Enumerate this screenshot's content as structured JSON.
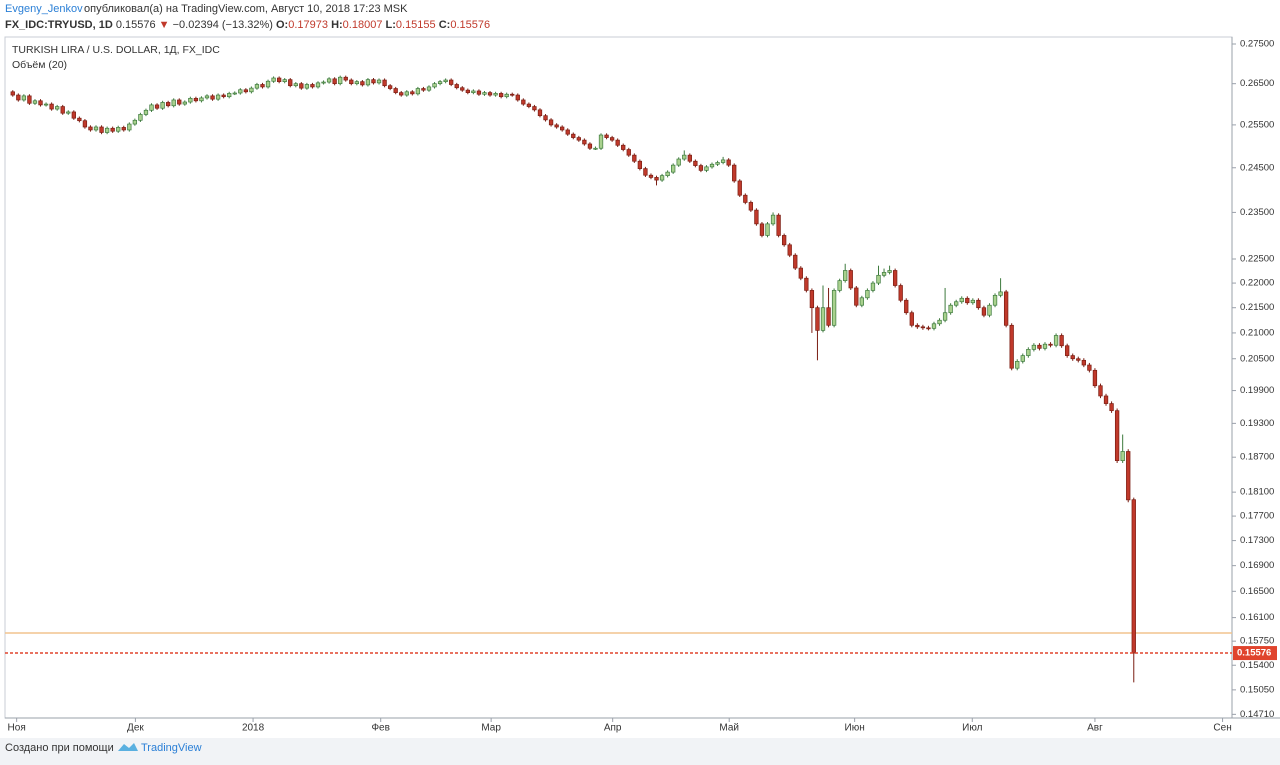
{
  "header": {
    "author": "Evgeny_Jenkov",
    "published": "опубликовал(а) на TradingView.com, Август 10, 2018 17:23 MSK",
    "symbol": "FX_IDC:TRYUSD, 1D",
    "last": "0.15576",
    "change": "−0.02394 (−13.32%)",
    "ohlc": [
      {
        "label": "O:",
        "value": "0.17973"
      },
      {
        "label": "H:",
        "value": "0.18007"
      },
      {
        "label": "L:",
        "value": "0.15155"
      },
      {
        "label": "C:",
        "value": "0.15576"
      }
    ]
  },
  "footer": {
    "text": "Создано при помощи",
    "brand": "TradingView"
  },
  "chart_data": {
    "type": "candlestick",
    "title": "TURKISH LIRA / U.S. DOLLAR, 1Д, FX_IDC",
    "subtitle": "Объём (20)",
    "log_scale": true,
    "grid": false,
    "up_color": "#a9d18e",
    "down_color": "#c0392b",
    "reference_line": 0.1587,
    "reference_color": "#f2c48d",
    "last_price_color": "#e0442d",
    "ylim": [
      0.1466,
      0.2768
    ],
    "yticks": [
      {
        "value": 0.275,
        "label": "0.27500"
      },
      {
        "value": 0.265,
        "label": "0.26500"
      },
      {
        "value": 0.255,
        "label": "0.25500"
      },
      {
        "value": 0.245,
        "label": "0.24500"
      },
      {
        "value": 0.235,
        "label": "0.23500"
      },
      {
        "value": 0.225,
        "label": "0.22500"
      },
      {
        "value": 0.22,
        "label": "0.22000"
      },
      {
        "value": 0.215,
        "label": "0.21500"
      },
      {
        "value": 0.21,
        "label": "0.21000"
      },
      {
        "value": 0.205,
        "label": "0.20500"
      },
      {
        "value": 0.199,
        "label": "0.19900"
      },
      {
        "value": 0.193,
        "label": "0.19300"
      },
      {
        "value": 0.187,
        "label": "0.18700"
      },
      {
        "value": 0.181,
        "label": "0.18100"
      },
      {
        "value": 0.177,
        "label": "0.17700"
      },
      {
        "value": 0.173,
        "label": "0.17300"
      },
      {
        "value": 0.169,
        "label": "0.16900"
      },
      {
        "value": 0.165,
        "label": "0.16500"
      },
      {
        "value": 0.161,
        "label": "0.16100"
      },
      {
        "value": 0.1575,
        "label": "0.15750"
      },
      {
        "value": 0.154,
        "label": "0.15400"
      },
      {
        "value": 0.1505,
        "label": "0.15050"
      },
      {
        "value": 0.1471,
        "label": "0.14710"
      }
    ],
    "xlim": [
      -1.4,
      219.7
    ],
    "xticks": [
      {
        "value": 0.7,
        "label": "Ноя"
      },
      {
        "value": 22.1,
        "label": "Дек"
      },
      {
        "value": 43.3,
        "label": "2018"
      },
      {
        "value": 66.3,
        "label": "Фев"
      },
      {
        "value": 86.2,
        "label": "Мар"
      },
      {
        "value": 108.1,
        "label": "Апр"
      },
      {
        "value": 129.1,
        "label": "Май"
      },
      {
        "value": 151.7,
        "label": "Июн"
      },
      {
        "value": 172.9,
        "label": "Июл"
      },
      {
        "value": 195,
        "label": "Авг"
      },
      {
        "value": 218,
        "label": "Сен"
      }
    ],
    "open": [
      0.263,
      0.2622,
      0.261,
      0.262,
      0.2602,
      0.2608,
      0.2598,
      0.26,
      0.2588,
      0.2594,
      0.2578,
      0.2581,
      0.2566,
      0.256,
      0.2545,
      0.2538,
      0.2545,
      0.2532,
      0.2542,
      0.2535,
      0.2544,
      0.2538,
      0.2552,
      0.2561,
      0.2575,
      0.2585,
      0.2598,
      0.259,
      0.2604,
      0.2596,
      0.261,
      0.26,
      0.2605,
      0.2614,
      0.2608,
      0.2615,
      0.262,
      0.2612,
      0.2622,
      0.2618,
      0.2626,
      0.2627,
      0.2635,
      0.263,
      0.2639,
      0.2648,
      0.2642,
      0.2656,
      0.2664,
      0.2655,
      0.266,
      0.2645,
      0.265,
      0.2639,
      0.2648,
      0.2642,
      0.2652,
      0.2654,
      0.2662,
      0.265,
      0.2666,
      0.2659,
      0.265,
      0.2655,
      0.2647,
      0.266,
      0.2652,
      0.2659,
      0.2645,
      0.2638,
      0.2628,
      0.2622,
      0.263,
      0.2625,
      0.2638,
      0.2634,
      0.2642,
      0.265,
      0.2655,
      0.2659,
      0.2648,
      0.264,
      0.2634,
      0.2628,
      0.2632,
      0.2624,
      0.2628,
      0.2622,
      0.2626,
      0.2618,
      0.2624,
      0.2622,
      0.261,
      0.26,
      0.2594,
      0.2586,
      0.2572,
      0.2562,
      0.255,
      0.2545,
      0.2538,
      0.2528,
      0.252,
      0.2514,
      0.2505,
      0.2495,
      0.2495,
      0.2526,
      0.252,
      0.2514,
      0.2502,
      0.2492,
      0.2479,
      0.2465,
      0.2448,
      0.2433,
      0.2428,
      0.2422,
      0.2432,
      0.244,
      0.2456,
      0.247,
      0.2479,
      0.2465,
      0.2455,
      0.2444,
      0.2452,
      0.2458,
      0.2462,
      0.2468,
      0.2456,
      0.242,
      0.2388,
      0.2372,
      0.2355,
      0.2325,
      0.23,
      0.2325,
      0.2344,
      0.23,
      0.228,
      0.2258,
      0.2231,
      0.221,
      0.2185,
      0.215,
      0.2105,
      0.215,
      0.2115,
      0.2185,
      0.2205,
      0.2226,
      0.219,
      0.2155,
      0.217,
      0.2185,
      0.22,
      0.2216,
      0.2222,
      0.2226,
      0.2195,
      0.2165,
      0.214,
      0.2115,
      0.2112,
      0.211,
      0.2109,
      0.2118,
      0.2125,
      0.214,
      0.2155,
      0.2162,
      0.2169,
      0.216,
      0.2165,
      0.215,
      0.2135,
      0.2155,
      0.2175,
      0.2182,
      0.2115,
      0.2032,
      0.2045,
      0.2056,
      0.2068,
      0.2076,
      0.207,
      0.2078,
      0.2076,
      0.2095,
      0.2075,
      0.2056,
      0.205,
      0.2047,
      0.2038,
      0.2028,
      0.1999,
      0.198,
      0.1966,
      0.1953,
      0.1864,
      0.188,
      0.17973
    ],
    "high": [
      0.2634,
      0.2626,
      0.2624,
      0.2624,
      0.2612,
      0.2612,
      0.2604,
      0.2604,
      0.2598,
      0.2598,
      0.2585,
      0.2585,
      0.257,
      0.2564,
      0.2549,
      0.2549,
      0.2549,
      0.2546,
      0.2546,
      0.2548,
      0.2548,
      0.2556,
      0.2565,
      0.2579,
      0.2589,
      0.2602,
      0.2602,
      0.2608,
      0.2608,
      0.2614,
      0.2614,
      0.2609,
      0.2618,
      0.2618,
      0.2619,
      0.2624,
      0.2624,
      0.2626,
      0.2626,
      0.263,
      0.2631,
      0.2639,
      0.2639,
      0.2643,
      0.2652,
      0.2652,
      0.266,
      0.2668,
      0.2668,
      0.2664,
      0.2664,
      0.2654,
      0.2654,
      0.2652,
      0.2652,
      0.2656,
      0.2658,
      0.2666,
      0.2666,
      0.267,
      0.267,
      0.2663,
      0.2659,
      0.2659,
      0.2664,
      0.2664,
      0.2663,
      0.2663,
      0.2649,
      0.2642,
      0.2632,
      0.2634,
      0.2634,
      0.2642,
      0.2642,
      0.2646,
      0.2654,
      0.2659,
      0.2663,
      0.2663,
      0.2652,
      0.2644,
      0.2638,
      0.2636,
      0.2636,
      0.2632,
      0.2632,
      0.263,
      0.263,
      0.2628,
      0.2628,
      0.2626,
      0.2614,
      0.2604,
      0.2598,
      0.259,
      0.2576,
      0.2566,
      0.2554,
      0.2549,
      0.2542,
      0.2532,
      0.2524,
      0.2518,
      0.2509,
      0.2499,
      0.253,
      0.253,
      0.2524,
      0.2518,
      0.2506,
      0.2496,
      0.2483,
      0.2469,
      0.2452,
      0.2437,
      0.2432,
      0.2436,
      0.2444,
      0.246,
      0.2474,
      0.249,
      0.2483,
      0.2469,
      0.2459,
      0.2456,
      0.2462,
      0.2466,
      0.2475,
      0.2472,
      0.246,
      0.2424,
      0.2392,
      0.2376,
      0.2359,
      0.2329,
      0.2329,
      0.235,
      0.2348,
      0.2304,
      0.2284,
      0.2262,
      0.2235,
      0.2214,
      0.2189,
      0.2154,
      0.2195,
      0.219,
      0.2189,
      0.2209,
      0.224,
      0.223,
      0.2194,
      0.2174,
      0.2189,
      0.2204,
      0.2236,
      0.223,
      0.2236,
      0.223,
      0.2199,
      0.2169,
      0.2144,
      0.2119,
      0.2116,
      0.2114,
      0.2122,
      0.2129,
      0.219,
      0.2159,
      0.2166,
      0.2173,
      0.2173,
      0.2169,
      0.2169,
      0.2154,
      0.2159,
      0.2179,
      0.221,
      0.2186,
      0.2119,
      0.2049,
      0.206,
      0.2072,
      0.208,
      0.208,
      0.2082,
      0.2082,
      0.2099,
      0.2099,
      0.2079,
      0.206,
      0.2054,
      0.2051,
      0.2042,
      0.2032,
      0.2003,
      0.1984,
      0.197,
      0.1957,
      0.191,
      0.1884,
      0.18007
    ],
    "low": [
      0.2618,
      0.2606,
      0.2606,
      0.2598,
      0.2598,
      0.2594,
      0.2594,
      0.2584,
      0.2584,
      0.2574,
      0.2574,
      0.2562,
      0.2556,
      0.2541,
      0.2534,
      0.2534,
      0.2528,
      0.2528,
      0.2531,
      0.2531,
      0.2534,
      0.2534,
      0.2548,
      0.2557,
      0.2571,
      0.2581,
      0.2586,
      0.2586,
      0.2592,
      0.2592,
      0.2596,
      0.2596,
      0.2601,
      0.2604,
      0.2604,
      0.2611,
      0.2608,
      0.2608,
      0.2614,
      0.2614,
      0.2622,
      0.2623,
      0.2626,
      0.2626,
      0.2635,
      0.2638,
      0.2638,
      0.2652,
      0.2651,
      0.2651,
      0.2641,
      0.2641,
      0.2635,
      0.2635,
      0.2638,
      0.2638,
      0.2648,
      0.265,
      0.2646,
      0.2646,
      0.2655,
      0.2646,
      0.2646,
      0.2643,
      0.2643,
      0.2648,
      0.2648,
      0.2641,
      0.2634,
      0.2624,
      0.2618,
      0.2618,
      0.2621,
      0.2621,
      0.263,
      0.263,
      0.2638,
      0.2646,
      0.2651,
      0.2644,
      0.2636,
      0.263,
      0.2624,
      0.2624,
      0.262,
      0.262,
      0.2618,
      0.2618,
      0.2614,
      0.2614,
      0.2618,
      0.2606,
      0.2596,
      0.259,
      0.2582,
      0.2568,
      0.2558,
      0.2546,
      0.2541,
      0.2534,
      0.2524,
      0.2516,
      0.251,
      0.2501,
      0.2491,
      0.2491,
      0.2491,
      0.2516,
      0.251,
      0.2498,
      0.2488,
      0.2475,
      0.2461,
      0.2444,
      0.2429,
      0.2424,
      0.241,
      0.2418,
      0.2428,
      0.2436,
      0.2452,
      0.2466,
      0.2461,
      0.2451,
      0.244,
      0.244,
      0.2448,
      0.2454,
      0.2458,
      0.2452,
      0.2416,
      0.2384,
      0.2368,
      0.2351,
      0.2321,
      0.2296,
      0.2296,
      0.2321,
      0.2296,
      0.2276,
      0.2254,
      0.2227,
      0.2206,
      0.2181,
      0.21,
      0.2047,
      0.2101,
      0.2111,
      0.2111,
      0.2181,
      0.2201,
      0.2186,
      0.2151,
      0.2151,
      0.2166,
      0.2181,
      0.2196,
      0.2212,
      0.2218,
      0.2191,
      0.2161,
      0.2136,
      0.2111,
      0.2108,
      0.2106,
      0.2105,
      0.2105,
      0.2114,
      0.2121,
      0.2136,
      0.2151,
      0.2158,
      0.2156,
      0.2156,
      0.2146,
      0.2131,
      0.2131,
      0.2151,
      0.2171,
      0.2111,
      0.2028,
      0.2028,
      0.2041,
      0.2052,
      0.2064,
      0.2066,
      0.2066,
      0.2072,
      0.2072,
      0.2071,
      0.2052,
      0.2046,
      0.2043,
      0.2034,
      0.2024,
      0.1995,
      0.1976,
      0.1962,
      0.1949,
      0.186,
      0.186,
      0.1793,
      0.15155
    ],
    "close": [
      0.2622,
      0.261,
      0.262,
      0.2602,
      0.2608,
      0.2598,
      0.26,
      0.2588,
      0.2594,
      0.2578,
      0.2581,
      0.2566,
      0.256,
      0.2545,
      0.2538,
      0.2545,
      0.2532,
      0.2542,
      0.2535,
      0.2544,
      0.2538,
      0.2552,
      0.2561,
      0.2575,
      0.2585,
      0.2598,
      0.259,
      0.2604,
      0.2596,
      0.261,
      0.26,
      0.2605,
      0.2614,
      0.2608,
      0.2615,
      0.262,
      0.2612,
      0.2622,
      0.2618,
      0.2626,
      0.2627,
      0.2635,
      0.263,
      0.2639,
      0.2648,
      0.2642,
      0.2656,
      0.2664,
      0.2655,
      0.266,
      0.2645,
      0.265,
      0.2639,
      0.2648,
      0.2642,
      0.2652,
      0.2654,
      0.2662,
      0.265,
      0.2666,
      0.2659,
      0.265,
      0.2655,
      0.2647,
      0.266,
      0.2652,
      0.2659,
      0.2645,
      0.2638,
      0.2628,
      0.2622,
      0.263,
      0.2625,
      0.2638,
      0.2634,
      0.2642,
      0.265,
      0.2655,
      0.2659,
      0.2648,
      0.264,
      0.2634,
      0.2628,
      0.2632,
      0.2624,
      0.2628,
      0.2622,
      0.2626,
      0.2618,
      0.2624,
      0.2622,
      0.261,
      0.26,
      0.2594,
      0.2586,
      0.2572,
      0.2562,
      0.255,
      0.2545,
      0.2538,
      0.2528,
      0.252,
      0.2514,
      0.2505,
      0.2495,
      0.2495,
      0.2526,
      0.252,
      0.2514,
      0.2502,
      0.2492,
      0.2479,
      0.2465,
      0.2448,
      0.2433,
      0.2428,
      0.2422,
      0.2432,
      0.244,
      0.2456,
      0.247,
      0.2479,
      0.2465,
      0.2455,
      0.2444,
      0.2452,
      0.2458,
      0.2462,
      0.2468,
      0.2456,
      0.242,
      0.2388,
      0.2372,
      0.2355,
      0.2325,
      0.23,
      0.2325,
      0.2344,
      0.23,
      0.228,
      0.2258,
      0.2231,
      0.221,
      0.2185,
      0.215,
      0.2105,
      0.215,
      0.2115,
      0.2185,
      0.2205,
      0.2226,
      0.219,
      0.2155,
      0.217,
      0.2185,
      0.22,
      0.2216,
      0.2222,
      0.2226,
      0.2195,
      0.2165,
      0.214,
      0.2115,
      0.2112,
      0.211,
      0.2109,
      0.2118,
      0.2125,
      0.214,
      0.2155,
      0.2162,
      0.2169,
      0.216,
      0.2165,
      0.215,
      0.2135,
      0.2155,
      0.2175,
      0.2182,
      0.2115,
      0.2032,
      0.2045,
      0.2056,
      0.2068,
      0.2076,
      0.207,
      0.2078,
      0.2076,
      0.2095,
      0.2075,
      0.2056,
      0.205,
      0.2047,
      0.2038,
      0.2028,
      0.1999,
      0.198,
      0.1966,
      0.1953,
      0.1864,
      0.188,
      0.1797,
      0.15576
    ]
  }
}
